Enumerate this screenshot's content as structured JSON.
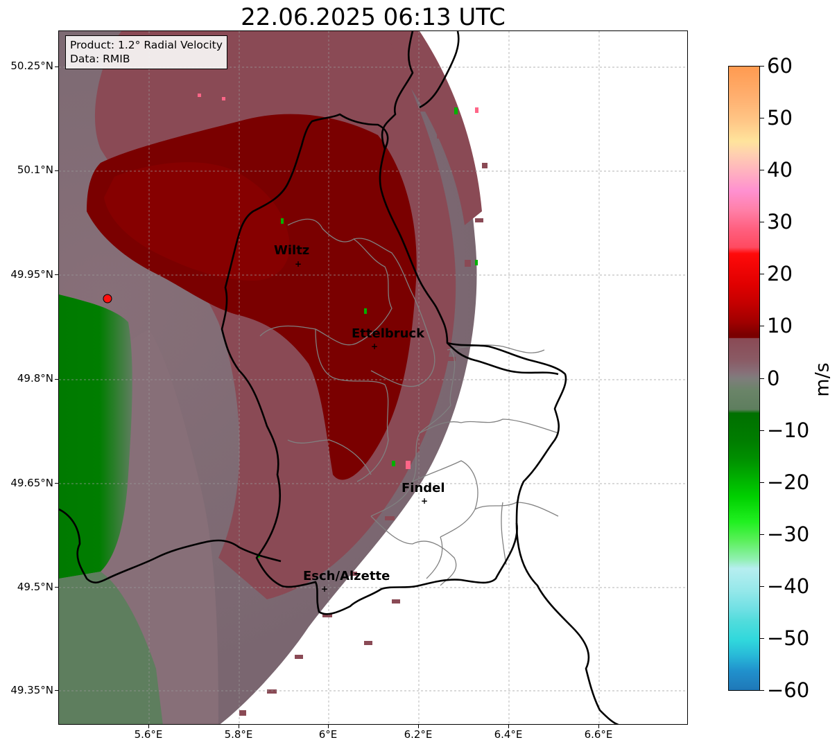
{
  "title": "22.06.2025 06:13 UTC",
  "info": {
    "product": "Product: 1.2° Radial Velocity",
    "data": "Data: RMIB"
  },
  "axes": {
    "y_ticks": [
      "50.25°N",
      "50.1°N",
      "49.95°N",
      "49.8°N",
      "49.65°N",
      "49.5°N",
      "49.35°N"
    ],
    "x_ticks": [
      "5.6°E",
      "5.8°E",
      "6°E",
      "6.2°E",
      "6.4°E",
      "6.6°E"
    ]
  },
  "cities": [
    {
      "name": "Wiltz"
    },
    {
      "name": "Ettelbruck"
    },
    {
      "name": "Findel"
    },
    {
      "name": "Esch/Alzette"
    }
  ],
  "colorbar": {
    "label": "m/s",
    "ticks": [
      "60",
      "50",
      "40",
      "30",
      "20",
      "10",
      "0",
      "−10",
      "−20",
      "−30",
      "−40",
      "−50",
      "−60"
    ],
    "range": [
      -60,
      60
    ]
  },
  "colors": {
    "receding_strong": "#7a0000",
    "receding_weak": "#8a4a55",
    "near_zero": "#876f78",
    "approaching_weak": "#5e7e5e",
    "approaching_strong": "#007a00",
    "radar_site": "#ff1010"
  }
}
